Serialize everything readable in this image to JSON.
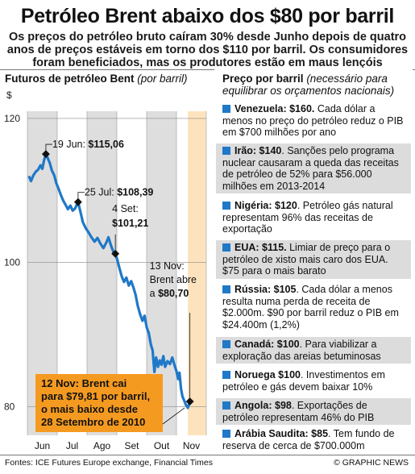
{
  "title": "Petróleo Brent abaixo dos $80 por barril",
  "subtitle": "Os preços do petróleo bruto caíram 30% desde Junho depois de quatro anos de preços estáveis em torno dos $110 por barril. Os consumidores foram beneficiados, mas os produtores estão em maus lençóis",
  "chart_head": {
    "label": "Futuros de petróleo Bent",
    "note": "(por barril)"
  },
  "panel_head": {
    "label": "Preço por barril",
    "note": "(necessário para equilibrar os orçamentos nacionais)"
  },
  "entries": [
    {
      "country": "Venezuela: $160.",
      "text": "Cada dólar a menos no preço do petróleo reduz o PIB em $700 milhões por ano",
      "shade": false
    },
    {
      "country": "Irão: $140",
      "text": ". Sanções pelo programa nuclear causaram a queda das receitas de petróleo de 52% para $56.000 milhões em 2013-2014",
      "shade": true
    },
    {
      "country": "Nigéria: $120",
      "text": ". Petróleo gás natural representam 96% das receitas de exportação",
      "shade": false
    },
    {
      "country": "EUA: $115.",
      "text": "Limiar de preço para o petróleo de xisto mais caro dos EUA. $75 para o mais barato",
      "shade": true
    },
    {
      "country": "Rússia: $105",
      "text": ". Cada dólar a menos resulta numa perda de receita de $2.000m. $90 por barril reduz o PIB em $24.400m (1,2%)",
      "shade": false
    },
    {
      "country": "Canadá: $100",
      "text": ". Para viabilizar a exploração das areias betuminosas",
      "shade": true
    },
    {
      "country": "Noruega $100",
      "text": ". Investimentos em petróleo e gás devem baixar 10%",
      "shade": false
    },
    {
      "country": "Angola: $98",
      "text": ". Exportações de petróleo representam 46% do PIB",
      "shade": true
    },
    {
      "country": "Arábia Saudita: $85",
      "text": ". Tem fundo de reserva de cerca de $700.000m",
      "shade": false
    }
  ],
  "footer": "Fontes: ICE Futures Europe exchange, Financial Times",
  "credit": "© GRAPHIC NEWS",
  "colors": {
    "line": "#1f78c8",
    "accent": "#1f78c8",
    "band": "#dedede",
    "callout": "#f59a20",
    "highlight": "#fde3bd"
  },
  "chart_data": {
    "type": "line",
    "title": "Futuros de petróleo Bent",
    "ylabel": "$",
    "ylim": [
      76,
      121
    ],
    "yticks": [
      80,
      100,
      120
    ],
    "xlim": [
      0,
      6
    ],
    "months": [
      "Jun",
      "Jul",
      "Ago",
      "Set",
      "Out",
      "Nov"
    ],
    "series": [
      {
        "values": [
          [
            0.05,
            112.0
          ],
          [
            0.12,
            111.3
          ],
          [
            0.2,
            112.1
          ],
          [
            0.28,
            112.6
          ],
          [
            0.36,
            112.9
          ],
          [
            0.44,
            113.5
          ],
          [
            0.5,
            113.0
          ],
          [
            0.56,
            114.2
          ],
          [
            0.62,
            115.06
          ],
          [
            0.68,
            114.5
          ],
          [
            0.75,
            113.8
          ],
          [
            0.82,
            112.8
          ],
          [
            0.9,
            112.1
          ],
          [
            0.97,
            111.0
          ],
          [
            1.05,
            110.2
          ],
          [
            1.12,
            109.4
          ],
          [
            1.2,
            108.6
          ],
          [
            1.28,
            108.0
          ],
          [
            1.36,
            107.4
          ],
          [
            1.44,
            107.9
          ],
          [
            1.52,
            107.2
          ],
          [
            1.6,
            107.5
          ],
          [
            1.7,
            108.39
          ],
          [
            1.78,
            107.0
          ],
          [
            1.86,
            105.6
          ],
          [
            1.95,
            104.8
          ],
          [
            2.05,
            104.2
          ],
          [
            2.15,
            103.5
          ],
          [
            2.25,
            102.9
          ],
          [
            2.35,
            103.4
          ],
          [
            2.45,
            102.6
          ],
          [
            2.55,
            102.0
          ],
          [
            2.65,
            102.8
          ],
          [
            2.72,
            103.5
          ],
          [
            2.8,
            102.4
          ],
          [
            2.88,
            101.5
          ],
          [
            2.95,
            101.21
          ],
          [
            3.02,
            100.3
          ],
          [
            3.1,
            99.0
          ],
          [
            3.17,
            98.0
          ],
          [
            3.24,
            97.3
          ],
          [
            3.32,
            97.9
          ],
          [
            3.4,
            96.8
          ],
          [
            3.48,
            97.4
          ],
          [
            3.56,
            96.5
          ],
          [
            3.63,
            95.5
          ],
          [
            3.7,
            94.0
          ],
          [
            3.78,
            92.8
          ],
          [
            3.86,
            91.9
          ],
          [
            3.93,
            92.6
          ],
          [
            4.0,
            91.0
          ],
          [
            4.07,
            90.2
          ],
          [
            4.14,
            88.6
          ],
          [
            4.2,
            87.8
          ],
          [
            4.26,
            84.8
          ],
          [
            4.32,
            86.8
          ],
          [
            4.38,
            85.5
          ],
          [
            4.44,
            86.4
          ],
          [
            4.5,
            85.8
          ],
          [
            4.56,
            87.0
          ],
          [
            4.62,
            85.5
          ],
          [
            4.7,
            86.3
          ],
          [
            4.78,
            85.9
          ],
          [
            4.86,
            86.8
          ],
          [
            4.93,
            85.8
          ],
          [
            5.0,
            84.9
          ],
          [
            5.06,
            83.8
          ],
          [
            5.1,
            84.7
          ],
          [
            5.15,
            82.5
          ],
          [
            5.2,
            81.4
          ],
          [
            5.25,
            80.9
          ],
          [
            5.32,
            80.2
          ],
          [
            5.38,
            79.81
          ],
          [
            5.45,
            80.7
          ]
        ]
      }
    ],
    "annotations": [
      {
        "label": "19 Jun: ",
        "value": "$115,06",
        "x": 0.62,
        "y": 115.06
      },
      {
        "label": "25 Jul: ",
        "value": "$108,39",
        "x": 1.7,
        "y": 108.39
      },
      {
        "label": "4 Set:",
        "value": "$101,21",
        "x": 2.95,
        "y": 101.21
      },
      {
        "label": "13 Nov: Brent abre a ",
        "value": "$80,70",
        "x": 5.45,
        "y": 80.7
      }
    ],
    "callout": {
      "lines": [
        "12 Nov: Brent cai",
        "para $79,81 por barril,",
        "o mais baixo desde",
        "28 Setembro de 2010"
      ],
      "x": 5.38,
      "y": 79.81
    }
  }
}
